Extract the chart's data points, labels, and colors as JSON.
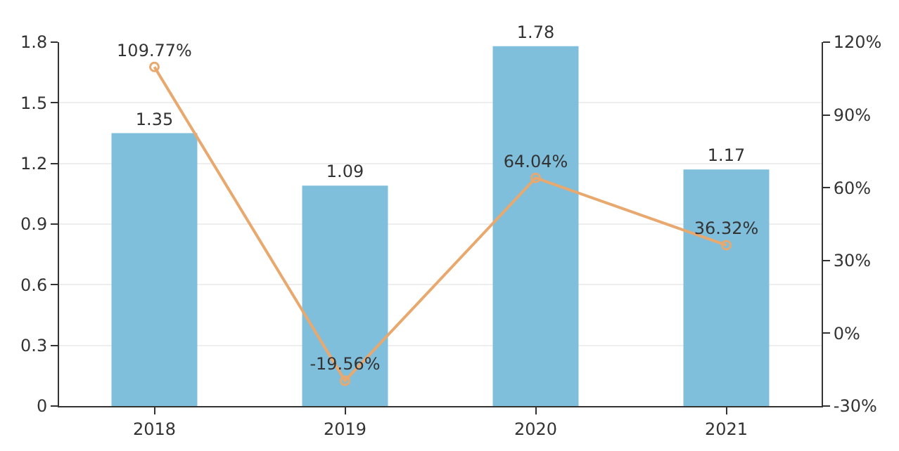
{
  "chart_data": {
    "type": "bar",
    "categories": [
      "2018",
      "2019",
      "2020",
      "2021"
    ],
    "series": [
      {
        "color": "#7fbfdc",
        "values": [
          1.35,
          1.09,
          1.78,
          1.17
        ],
        "value_labels": [
          "1.35",
          "1.09",
          "1.78",
          "1.17"
        ]
      },
      {
        "type": "line",
        "axis": "y2",
        "color": "#e8a86e",
        "values": [
          109.77,
          -19.56,
          64.04,
          36.32
        ],
        "value_labels": [
          "109.77%",
          "-19.56%",
          "64.04%",
          "36.32%"
        ]
      }
    ],
    "ylim": [
      0,
      1.8
    ],
    "yticks": [
      0,
      0.3,
      0.6,
      0.9,
      1.2,
      1.5,
      1.8
    ],
    "y2lim": [
      -30,
      120
    ],
    "y2ticks": [
      {
        "value": -30,
        "label": "-30%"
      },
      {
        "value": 0,
        "label": "0%"
      },
      {
        "value": 30,
        "label": "30%"
      },
      {
        "value": 60,
        "label": "60%"
      },
      {
        "value": 90,
        "label": "90%"
      },
      {
        "value": 120,
        "label": "120%"
      }
    ],
    "grid": "y",
    "marker": "circle",
    "legend": false
  }
}
